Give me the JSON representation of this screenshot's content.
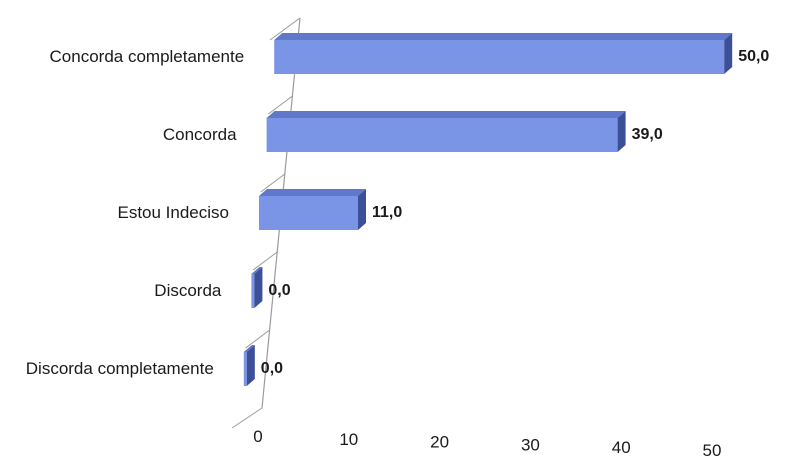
{
  "chart_data": {
    "type": "bar",
    "orientation": "horizontal",
    "style": "3d",
    "categories": [
      "Concorda completamente",
      "Concorda",
      "Estou Indeciso",
      "Discorda",
      "Discorda completamente"
    ],
    "values": [
      50.0,
      39.0,
      11.0,
      0.0,
      0.0
    ],
    "data_labels": [
      "50,0",
      "39,0",
      "11,0",
      "0,0",
      "0,0"
    ],
    "x_ticks": [
      "0",
      "10",
      "20",
      "30",
      "40",
      "50"
    ],
    "xlim": [
      0,
      50
    ],
    "grid": false,
    "legend": "none",
    "colors": {
      "bar_front": "#7b95e6",
      "bar_top": "#5f78c9",
      "bar_side": "#3c4f99",
      "axis": "#9a9a9a"
    }
  }
}
